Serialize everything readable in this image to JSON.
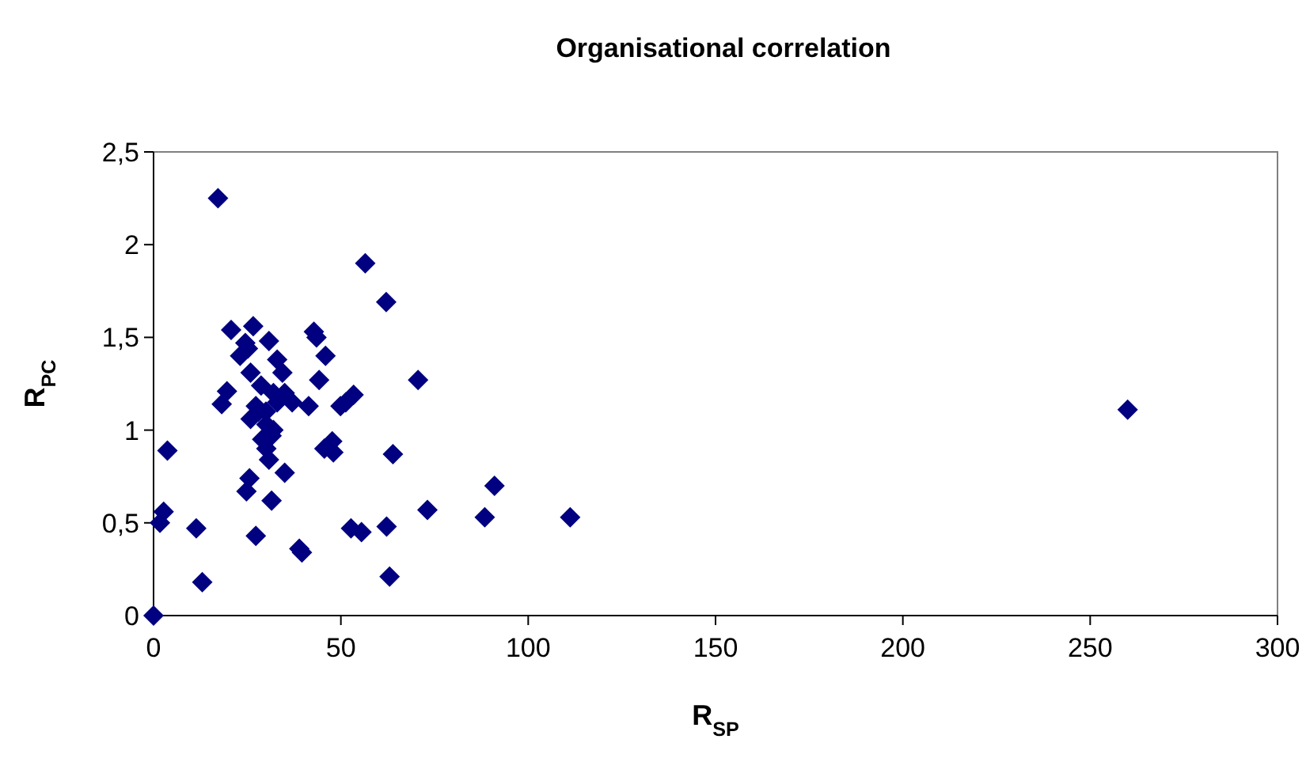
{
  "chart_data": {
    "type": "scatter",
    "title": "Organisational correlation",
    "xlabel": "R$_{SP}$",
    "ylabel": "R$_{PC}$",
    "xlim": [
      0,
      300
    ],
    "xticks": [
      0,
      50,
      100,
      150,
      200,
      250,
      300
    ],
    "ylim": [
      0,
      2.5
    ],
    "yticks": [
      {
        "value": 0,
        "label": "0"
      },
      {
        "value": 0.5,
        "label": "0,5"
      },
      {
        "value": 1,
        "label": "1"
      },
      {
        "value": 1.5,
        "label": "1,5"
      },
      {
        "value": 2,
        "label": "2"
      },
      {
        "value": 2.5,
        "label": "2,5"
      }
    ],
    "grid": false,
    "marker": "diamond",
    "series": [
      {
        "color": "#000080",
        "x": [
          17.2,
          56.5,
          20.7,
          26.6,
          30.8,
          42.8,
          43.5,
          45.9,
          24.5,
          23.1,
          25.2,
          33,
          25.9,
          34.4,
          44.2,
          28.7,
          53.4,
          51.3,
          19.6,
          18.2,
          27.3,
          41.4,
          49.9,
          25.9,
          30.1,
          31.5,
          3.7,
          45.6,
          47.7,
          48,
          30.1,
          30.8,
          35,
          25.6,
          24.8,
          31.5,
          2.7,
          1.7,
          11.4,
          27.3,
          38.9,
          39.6,
          52.7,
          55.5,
          13,
          0,
          62.1,
          70.6,
          63.9,
          91,
          73.1,
          88.4,
          111.2,
          62.2,
          63,
          260,
          30,
          32,
          28,
          33,
          37,
          35,
          29,
          32
        ],
        "values": [
          2.25,
          1.9,
          1.54,
          1.56,
          1.48,
          1.53,
          1.5,
          1.4,
          1.47,
          1.4,
          1.44,
          1.38,
          1.31,
          1.31,
          1.27,
          1.24,
          1.19,
          1.15,
          1.21,
          1.14,
          1.13,
          1.13,
          1.13,
          1.06,
          1.03,
          0.97,
          0.89,
          0.9,
          0.94,
          0.88,
          0.9,
          0.84,
          0.77,
          0.74,
          0.67,
          0.62,
          0.56,
          0.5,
          0.47,
          0.43,
          0.36,
          0.34,
          0.47,
          0.45,
          0.18,
          0,
          1.69,
          1.27,
          0.87,
          0.7,
          0.57,
          0.53,
          0.53,
          0.48,
          0.21,
          1.11,
          1.1,
          1.2,
          1.1,
          1.15,
          1.15,
          1.2,
          0.95,
          1.0
        ]
      }
    ]
  }
}
